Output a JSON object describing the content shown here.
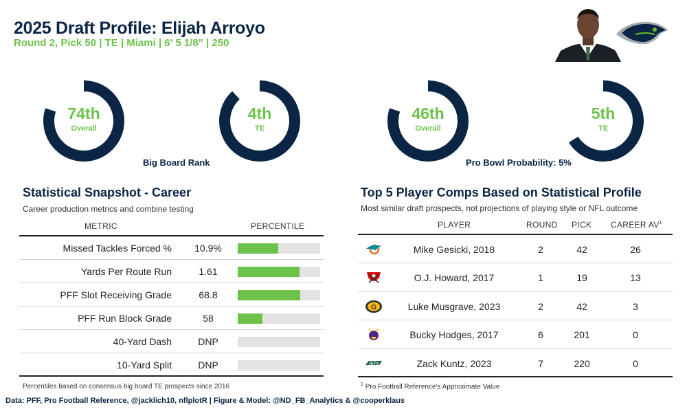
{
  "header": {
    "title": "2025 Draft Profile: Elijah Arroyo",
    "subtitle": "Round 2, Pick 50 | TE | Miami | 6' 5 1/8\" | 250"
  },
  "colors": {
    "navy": "#0b2545",
    "green": "#6cc24a",
    "track": "#ffffff",
    "bar_bg": "#e3e3e3"
  },
  "rings": {
    "big_board": {
      "caption": "Big Board Rank",
      "overall": {
        "value": "74th",
        "label": "Overall",
        "fill_fraction": 0.8
      },
      "position": {
        "value": "4th",
        "label": "TE",
        "fill_fraction": 0.88
      }
    },
    "pro_bowl": {
      "caption": "Pro Bowl Probability: 5%",
      "overall": {
        "value": "46th",
        "label": "Overall",
        "fill_fraction": 0.8
      },
      "position": {
        "value": "5th",
        "label": "TE",
        "fill_fraction": 0.66
      }
    }
  },
  "snapshot": {
    "title": "Statistical Snapshot - Career",
    "subtitle": "Career production metrics and combine testing",
    "col_metric": "METRIC",
    "col_percentile": "PERCENTILE",
    "rows": [
      {
        "metric": "Missed Tackles Forced %",
        "value": "10.9%",
        "percentile": 49
      },
      {
        "metric": "Yards Per Route Run",
        "value": "1.61",
        "percentile": 75
      },
      {
        "metric": "PFF Slot Receiving Grade",
        "value": "68.8",
        "percentile": 76
      },
      {
        "metric": "PFF Run Block Grade",
        "value": "58",
        "percentile": 30
      },
      {
        "metric": "40-Yard Dash",
        "value": "DNP",
        "percentile": 0
      },
      {
        "metric": "10-Yard Split",
        "value": "DNP",
        "percentile": 0
      }
    ],
    "note": "Percentiles based on consensus big board TE prospects since 2016"
  },
  "comps": {
    "title": "Top 5 Player Comps Based on Statistical Profile",
    "subtitle": "Most similar draft prospects, not projections of playing style or NFL outcome",
    "col_player": "PLAYER",
    "col_round": "ROUND",
    "col_pick": "PICK",
    "col_av": "CAREER AV",
    "col_av_sup": "1",
    "rows": [
      {
        "team_icon": "dolphins-logo-icon",
        "player": "Mike Gesicki, 2018",
        "round": "2",
        "pick": "42",
        "av": "26"
      },
      {
        "team_icon": "buccaneers-logo-icon",
        "player": "O.J. Howard, 2017",
        "round": "1",
        "pick": "19",
        "av": "13"
      },
      {
        "team_icon": "packers-logo-icon",
        "player": "Luke Musgrave, 2023",
        "round": "2",
        "pick": "42",
        "av": "3"
      },
      {
        "team_icon": "vikings-logo-icon",
        "player": "Bucky Hodges, 2017",
        "round": "6",
        "pick": "201",
        "av": "0"
      },
      {
        "team_icon": "jets-logo-icon",
        "player": "Zack Kuntz, 2023",
        "round": "7",
        "pick": "220",
        "av": "0"
      }
    ],
    "note_sup": "1",
    "note": "Pro Football Reference's Approximate Value"
  },
  "footer": {
    "credits": "Data: PFF, Pro Football Reference, @jacklich10, nflplotR | Figure & Model: @ND_FB_Analytics & @cooperklaus"
  }
}
